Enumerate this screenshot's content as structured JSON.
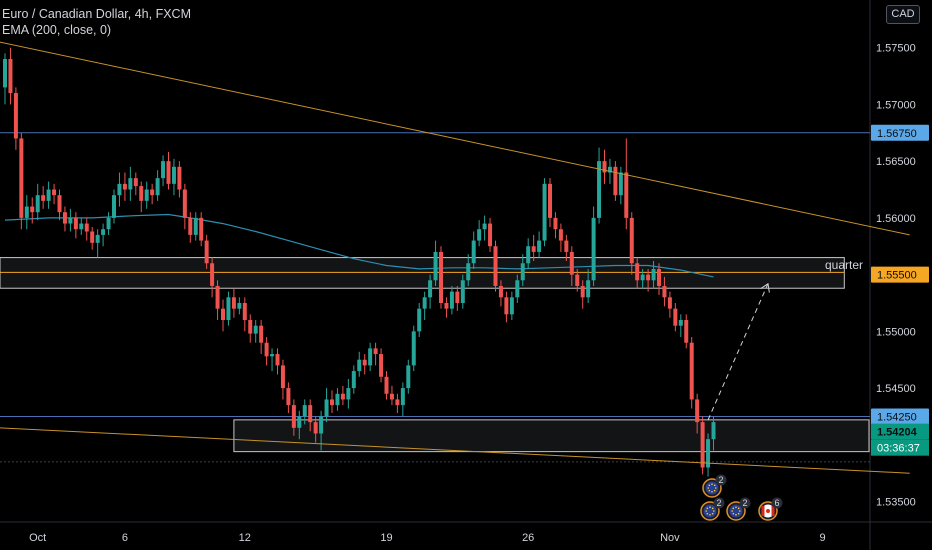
{
  "header": {
    "title": "Euro / Canadian Dollar, 4h, FXCM",
    "indicator": "EMA (200, close, 0)",
    "currency": "CAD"
  },
  "annotations": {
    "zone_label": "quarter",
    "countdown": "03:36:37"
  },
  "event_badges": [
    {
      "flag": "eu",
      "count": "2",
      "row": "upper"
    },
    {
      "flag": "eu",
      "count": "2",
      "row": "lower"
    },
    {
      "flag": "eu",
      "count": "2",
      "row": "lower"
    },
    {
      "flag": "ca",
      "count": "6",
      "row": "lower"
    }
  ],
  "colors": {
    "background": "#000000",
    "candle_up": "#26a69a",
    "candle_down": "#ef5350",
    "ema": "#2b8fb3",
    "trendline": "#c8922a",
    "hline": "#4a6fb5",
    "zone_border": "#c8c8c8",
    "label_blue": "#5aa8e8",
    "label_orange": "#f5a623",
    "label_green": "#089981"
  },
  "chart_data": {
    "type": "candlestick",
    "title": "Euro / Canadian Dollar, 4h, FXCM",
    "y_ticks": [
      1.575,
      1.57,
      1.565,
      1.56,
      1.555,
      1.55,
      1.545,
      1.54,
      1.535
    ],
    "y_tick_labels": [
      "1.57500",
      "1.57000",
      "1.56500",
      "1.56000",
      "1.55500",
      "1.55000",
      "1.54500",
      "1.54000",
      "1.53500"
    ],
    "ylim": [
      1.5332,
      1.5792
    ],
    "x_ticks": [
      {
        "label": "Oct",
        "bar": 6
      },
      {
        "label": "6",
        "bar": 22
      },
      {
        "label": "12",
        "bar": 44
      },
      {
        "label": "19",
        "bar": 70
      },
      {
        "label": "26",
        "bar": 96
      },
      {
        "label": "Nov",
        "bar": 122
      },
      {
        "label": "9",
        "bar": 150
      }
    ],
    "price_labels": [
      {
        "value": 1.5675,
        "text": "1.56750",
        "style": "blue"
      },
      {
        "value": 1.555,
        "text": "1.55500",
        "style": "orange"
      },
      {
        "value": 1.5425,
        "text": "1.54250",
        "style": "blue"
      },
      {
        "value": 1.54204,
        "text": "1.54204",
        "style": "green"
      }
    ],
    "horizontal_lines": [
      1.5675,
      1.5425,
      1.5385
    ],
    "zones": [
      {
        "from_bar": -1,
        "to_bar": 154,
        "top": 1.5565,
        "bottom": 1.5538,
        "label": "quarter"
      },
      {
        "from_bar": 42,
        "to_bar": 164,
        "top": 1.5422,
        "bottom": 1.5394
      }
    ],
    "level_line": {
      "value": 1.5552,
      "from_bar": -1,
      "to_bar": 154
    },
    "trendlines": [
      {
        "from": {
          "bar": -1,
          "price": 1.5755
        },
        "to": {
          "bar": 166,
          "price": 1.5585
        }
      },
      {
        "from": {
          "bar": -1,
          "price": 1.5415
        },
        "to": {
          "bar": 166,
          "price": 1.5375
        }
      }
    ],
    "projection": {
      "from": {
        "bar": 129,
        "price": 1.5422
      },
      "to": {
        "bar": 140,
        "price": 1.5542
      }
    },
    "ema_points": [
      [
        0,
        1.5598
      ],
      [
        8,
        1.56
      ],
      [
        16,
        1.56
      ],
      [
        24,
        1.5602
      ],
      [
        30,
        1.5603
      ],
      [
        34,
        1.56
      ],
      [
        40,
        1.5595
      ],
      [
        46,
        1.5588
      ],
      [
        52,
        1.558
      ],
      [
        58,
        1.5572
      ],
      [
        64,
        1.5564
      ],
      [
        70,
        1.5558
      ],
      [
        76,
        1.5555
      ],
      [
        82,
        1.5556
      ],
      [
        88,
        1.5556
      ],
      [
        94,
        1.5555
      ],
      [
        100,
        1.5556
      ],
      [
        106,
        1.5557
      ],
      [
        112,
        1.5558
      ],
      [
        118,
        1.5558
      ],
      [
        124,
        1.5554
      ],
      [
        130,
        1.5548
      ]
    ],
    "candles": [
      [
        1.5715,
        1.574,
        1.57,
        1.5745
      ],
      [
        1.574,
        1.571,
        1.57,
        1.575
      ],
      [
        1.571,
        1.567,
        1.566,
        1.5715
      ],
      [
        1.567,
        1.56,
        1.559,
        1.5675
      ],
      [
        1.56,
        1.561,
        1.559,
        1.562
      ],
      [
        1.561,
        1.5605,
        1.5595,
        1.5618
      ],
      [
        1.5605,
        1.562,
        1.5598,
        1.563
      ],
      [
        1.562,
        1.5615,
        1.5608,
        1.5628
      ],
      [
        1.5615,
        1.5625,
        1.5608,
        1.5632
      ],
      [
        1.5625,
        1.562,
        1.5612,
        1.563
      ],
      [
        1.562,
        1.5605,
        1.5598,
        1.5625
      ],
      [
        1.5605,
        1.5595,
        1.5588,
        1.561
      ],
      [
        1.5595,
        1.56,
        1.5588,
        1.5608
      ],
      [
        1.56,
        1.559,
        1.5582,
        1.5605
      ],
      [
        1.559,
        1.5595,
        1.5585,
        1.56
      ],
      [
        1.5595,
        1.5588,
        1.558,
        1.56
      ],
      [
        1.5588,
        1.5578,
        1.5572,
        1.5592
      ],
      [
        1.5578,
        1.5585,
        1.5565,
        1.559
      ],
      [
        1.5585,
        1.559,
        1.5575,
        1.5595
      ],
      [
        1.559,
        1.56,
        1.5585,
        1.5605
      ],
      [
        1.56,
        1.562,
        1.5595,
        1.5625
      ],
      [
        1.562,
        1.563,
        1.561,
        1.564
      ],
      [
        1.563,
        1.5625,
        1.5615,
        1.564
      ],
      [
        1.5625,
        1.5635,
        1.5615,
        1.5645
      ],
      [
        1.5635,
        1.5628,
        1.562,
        1.564
      ],
      [
        1.5628,
        1.5615,
        1.5605,
        1.5632
      ],
      [
        1.5615,
        1.5625,
        1.5608,
        1.5632
      ],
      [
        1.5625,
        1.562,
        1.5612,
        1.563
      ],
      [
        1.562,
        1.5635,
        1.5615,
        1.5642
      ],
      [
        1.5635,
        1.565,
        1.5628,
        1.5655
      ],
      [
        1.565,
        1.563,
        1.5625,
        1.5658
      ],
      [
        1.563,
        1.5645,
        1.562,
        1.5652
      ],
      [
        1.5645,
        1.5625,
        1.5618,
        1.565
      ],
      [
        1.5625,
        1.56,
        1.559,
        1.563
      ],
      [
        1.56,
        1.5585,
        1.5578,
        1.5605
      ],
      [
        1.5585,
        1.56,
        1.558,
        1.5605
      ],
      [
        1.56,
        1.558,
        1.5575,
        1.5605
      ],
      [
        1.558,
        1.556,
        1.5555,
        1.5585
      ],
      [
        1.556,
        1.554,
        1.553,
        1.5565
      ],
      [
        1.554,
        1.552,
        1.551,
        1.5545
      ],
      [
        1.552,
        1.551,
        1.55,
        1.5528
      ],
      [
        1.551,
        1.553,
        1.5505,
        1.5535
      ],
      [
        1.553,
        1.552,
        1.5512,
        1.5538
      ],
      [
        1.552,
        1.5525,
        1.5515,
        1.553
      ],
      [
        1.5525,
        1.551,
        1.55,
        1.553
      ],
      [
        1.551,
        1.5498,
        1.549,
        1.5515
      ],
      [
        1.5498,
        1.5505,
        1.549,
        1.551
      ],
      [
        1.5505,
        1.549,
        1.548,
        1.551
      ],
      [
        1.549,
        1.5478,
        1.547,
        1.5495
      ],
      [
        1.5478,
        1.548,
        1.5465,
        1.5485
      ],
      [
        1.548,
        1.547,
        1.5462,
        1.5485
      ],
      [
        1.547,
        1.545,
        1.544,
        1.5475
      ],
      [
        1.545,
        1.5435,
        1.5428,
        1.5455
      ],
      [
        1.5435,
        1.5415,
        1.5408,
        1.544
      ],
      [
        1.5415,
        1.5425,
        1.5405,
        1.543
      ],
      [
        1.5425,
        1.5435,
        1.5418,
        1.544
      ],
      [
        1.5435,
        1.542,
        1.5412,
        1.544
      ],
      [
        1.542,
        1.541,
        1.5402,
        1.5425
      ],
      [
        1.541,
        1.5425,
        1.5395,
        1.543
      ],
      [
        1.5425,
        1.544,
        1.542,
        1.545
      ],
      [
        1.544,
        1.5435,
        1.5428,
        1.5448
      ],
      [
        1.5435,
        1.5445,
        1.543,
        1.545
      ],
      [
        1.5445,
        1.544,
        1.5435,
        1.5452
      ],
      [
        1.544,
        1.545,
        1.5432,
        1.5458
      ],
      [
        1.545,
        1.5465,
        1.5445,
        1.547
      ],
      [
        1.5465,
        1.5475,
        1.546,
        1.5482
      ],
      [
        1.5475,
        1.547,
        1.5462,
        1.548
      ],
      [
        1.547,
        1.5485,
        1.5465,
        1.549
      ],
      [
        1.5485,
        1.548,
        1.547,
        1.549
      ],
      [
        1.548,
        1.546,
        1.5455,
        1.5485
      ],
      [
        1.546,
        1.5445,
        1.544,
        1.5465
      ],
      [
        1.5445,
        1.544,
        1.5435,
        1.5452
      ],
      [
        1.544,
        1.5435,
        1.5428,
        1.5445
      ],
      [
        1.5435,
        1.545,
        1.5425,
        1.5455
      ],
      [
        1.545,
        1.547,
        1.5445,
        1.5475
      ],
      [
        1.547,
        1.55,
        1.5465,
        1.5505
      ],
      [
        1.55,
        1.552,
        1.5495,
        1.5525
      ],
      [
        1.552,
        1.553,
        1.551,
        1.5535
      ],
      [
        1.553,
        1.5545,
        1.552,
        1.555
      ],
      [
        1.5545,
        1.557,
        1.554,
        1.558
      ],
      [
        1.557,
        1.5525,
        1.552,
        1.5575
      ],
      [
        1.5525,
        1.552,
        1.5512,
        1.553
      ],
      [
        1.552,
        1.5535,
        1.5515,
        1.554
      ],
      [
        1.5535,
        1.5525,
        1.5518,
        1.554
      ],
      [
        1.5525,
        1.5545,
        1.552,
        1.555
      ],
      [
        1.5545,
        1.556,
        1.554,
        1.5568
      ],
      [
        1.556,
        1.558,
        1.5555,
        1.5588
      ],
      [
        1.558,
        1.559,
        1.5575,
        1.5598
      ],
      [
        1.559,
        1.5595,
        1.558,
        1.5602
      ],
      [
        1.5595,
        1.5575,
        1.557,
        1.56
      ],
      [
        1.5575,
        1.554,
        1.5535,
        1.558
      ],
      [
        1.554,
        1.553,
        1.5522,
        1.5545
      ],
      [
        1.553,
        1.5515,
        1.5508,
        1.5535
      ],
      [
        1.5515,
        1.553,
        1.551,
        1.5535
      ],
      [
        1.553,
        1.5545,
        1.5525,
        1.555
      ],
      [
        1.5545,
        1.556,
        1.554,
        1.5568
      ],
      [
        1.556,
        1.5575,
        1.5555,
        1.5582
      ],
      [
        1.5575,
        1.557,
        1.5562,
        1.5585
      ],
      [
        1.557,
        1.558,
        1.5565,
        1.5588
      ],
      [
        1.558,
        1.563,
        1.5575,
        1.5635
      ],
      [
        1.563,
        1.56,
        1.5592,
        1.5635
      ],
      [
        1.56,
        1.559,
        1.5582,
        1.5605
      ],
      [
        1.559,
        1.558,
        1.557,
        1.5595
      ],
      [
        1.558,
        1.557,
        1.5562,
        1.5585
      ],
      [
        1.557,
        1.555,
        1.554,
        1.5575
      ],
      [
        1.555,
        1.554,
        1.5535,
        1.5555
      ],
      [
        1.554,
        1.553,
        1.552,
        1.5545
      ],
      [
        1.553,
        1.5545,
        1.5525,
        1.5555
      ],
      [
        1.5545,
        1.56,
        1.554,
        1.561
      ],
      [
        1.56,
        1.565,
        1.5595,
        1.5662
      ],
      [
        1.565,
        1.564,
        1.563,
        1.566
      ],
      [
        1.564,
        1.5645,
        1.563,
        1.5652
      ],
      [
        1.5645,
        1.562,
        1.5615,
        1.565
      ],
      [
        1.562,
        1.564,
        1.5612,
        1.5645
      ],
      [
        1.564,
        1.56,
        1.559,
        1.567
      ],
      [
        1.56,
        1.556,
        1.555,
        1.5605
      ],
      [
        1.556,
        1.5545,
        1.5538,
        1.5565
      ],
      [
        1.5545,
        1.555,
        1.5538,
        1.5555
      ],
      [
        1.555,
        1.5545,
        1.5535,
        1.5555
      ],
      [
        1.5545,
        1.5555,
        1.5538,
        1.5562
      ],
      [
        1.5555,
        1.554,
        1.5532,
        1.556
      ],
      [
        1.554,
        1.553,
        1.5522,
        1.5548
      ],
      [
        1.553,
        1.552,
        1.5512,
        1.5535
      ],
      [
        1.552,
        1.5505,
        1.55,
        1.5525
      ],
      [
        1.5505,
        1.551,
        1.5495,
        1.5515
      ],
      [
        1.551,
        1.549,
        1.5485,
        1.5515
      ],
      [
        1.549,
        1.544,
        1.5432,
        1.5495
      ],
      [
        1.544,
        1.542,
        1.541,
        1.5445
      ],
      [
        1.542,
        1.538,
        1.5374,
        1.5425
      ],
      [
        1.538,
        1.5405,
        1.5372,
        1.541
      ],
      [
        1.5405,
        1.542,
        1.5395,
        1.5425
      ]
    ]
  }
}
